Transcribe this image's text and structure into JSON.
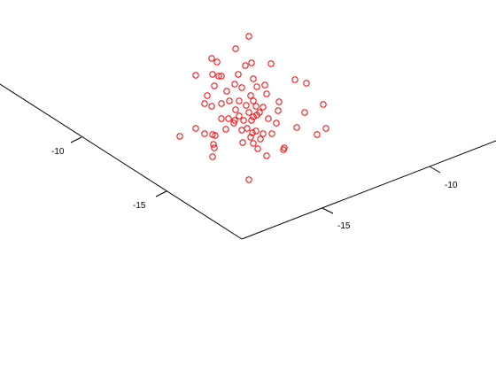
{
  "chart_data": {
    "type": "scatter",
    "projection": "3d",
    "title": "",
    "xlabel": "",
    "ylabel": "",
    "zlabel": "",
    "grid": false,
    "legend": "none",
    "marker": "open-circle",
    "marker_color": "#ff0000",
    "axis_color": "#000000",
    "left_axis": {
      "tick_labels": [
        "-10",
        "-15"
      ]
    },
    "right_axis": {
      "tick_labels": [
        "-15",
        "-10"
      ]
    },
    "points": [
      [
        281,
        41
      ],
      [
        266,
        55
      ],
      [
        239,
        66
      ],
      [
        245,
        70
      ],
      [
        284,
        71
      ],
      [
        277,
        74
      ],
      [
        306,
        72
      ],
      [
        221,
        85
      ],
      [
        240,
        84
      ],
      [
        247,
        86
      ],
      [
        250,
        86
      ],
      [
        269,
        84
      ],
      [
        333,
        90
      ],
      [
        346,
        94
      ],
      [
        286,
        89
      ],
      [
        265,
        95
      ],
      [
        273,
        99
      ],
      [
        242,
        97
      ],
      [
        256,
        103
      ],
      [
        299,
        96
      ],
      [
        290,
        98
      ],
      [
        234,
        108
      ],
      [
        301,
        106
      ],
      [
        283,
        108
      ],
      [
        270,
        114
      ],
      [
        286,
        114
      ],
      [
        259,
        114
      ],
      [
        231,
        117
      ],
      [
        250,
        117
      ],
      [
        315,
        115
      ],
      [
        365,
        118
      ],
      [
        239,
        120
      ],
      [
        278,
        119
      ],
      [
        289,
        120
      ],
      [
        297,
        121
      ],
      [
        266,
        124
      ],
      [
        281,
        127
      ],
      [
        293,
        127
      ],
      [
        314,
        125
      ],
      [
        344,
        127
      ],
      [
        270,
        131
      ],
      [
        286,
        132
      ],
      [
        290,
        130
      ],
      [
        250,
        134
      ],
      [
        258,
        134
      ],
      [
        264,
        139
      ],
      [
        275,
        136
      ],
      [
        284,
        136
      ],
      [
        303,
        134
      ],
      [
        312,
        139
      ],
      [
        265,
        136
      ],
      [
        221,
        145
      ],
      [
        255,
        146
      ],
      [
        279,
        145
      ],
      [
        335,
        144
      ],
      [
        368,
        145
      ],
      [
        231,
        151
      ],
      [
        240,
        152
      ],
      [
        273,
        147
      ],
      [
        289,
        148
      ],
      [
        285,
        150
      ],
      [
        297,
        151
      ],
      [
        307,
        151
      ],
      [
        358,
        152
      ],
      [
        203,
        154
      ],
      [
        243,
        153
      ],
      [
        283,
        155
      ],
      [
        294,
        157
      ],
      [
        274,
        161
      ],
      [
        286,
        162
      ],
      [
        241,
        163
      ],
      [
        242,
        167
      ],
      [
        291,
        168
      ],
      [
        321,
        167
      ],
      [
        320,
        169
      ],
      [
        240,
        177
      ],
      [
        301,
        176
      ],
      [
        281,
        203
      ]
    ]
  }
}
